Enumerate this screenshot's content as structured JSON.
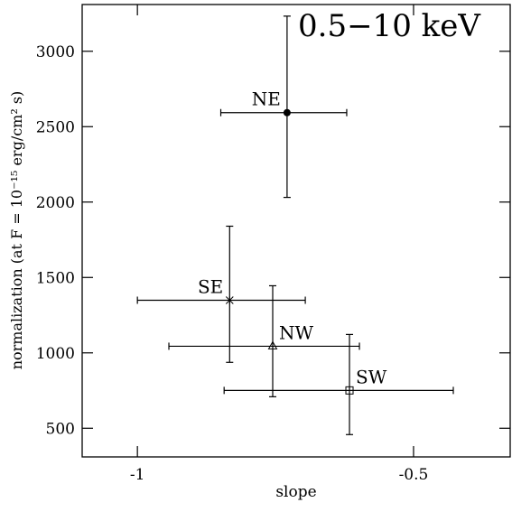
{
  "chart_data": {
    "type": "scatter",
    "title": "0.5−10 keV",
    "x_label": "slope",
    "y_label": "normalization (at F =  10⁻¹⁵ erg/cm² s)",
    "xlim": [
      -1.1,
      -0.325
    ],
    "xticks": [
      -1,
      -0.5
    ],
    "ylim": [
      310,
      3310
    ],
    "yticks": [
      500,
      1000,
      1500,
      2000,
      2500,
      3000
    ],
    "color": "#000000",
    "points": [
      {
        "name": "NE",
        "marker": "circle",
        "x": -0.729,
        "y": 2593,
        "x_low": -0.849,
        "x_high": -0.621,
        "y_low": 2031,
        "y_high": 3233
      },
      {
        "name": "SE",
        "marker": "asterisk",
        "x": -0.833,
        "y": 1349,
        "x_low": -1.0,
        "x_high": -0.696,
        "y_low": 937,
        "y_high": 1840
      },
      {
        "name": "NW",
        "marker": "triangle",
        "x": -0.755,
        "y": 1044,
        "x_low": -0.943,
        "x_high": -0.598,
        "y_low": 709,
        "y_high": 1445
      },
      {
        "name": "SW",
        "marker": "square",
        "x": -0.616,
        "y": 751,
        "x_low": -0.843,
        "x_high": -0.428,
        "y_low": 458,
        "y_high": 1122
      }
    ]
  }
}
